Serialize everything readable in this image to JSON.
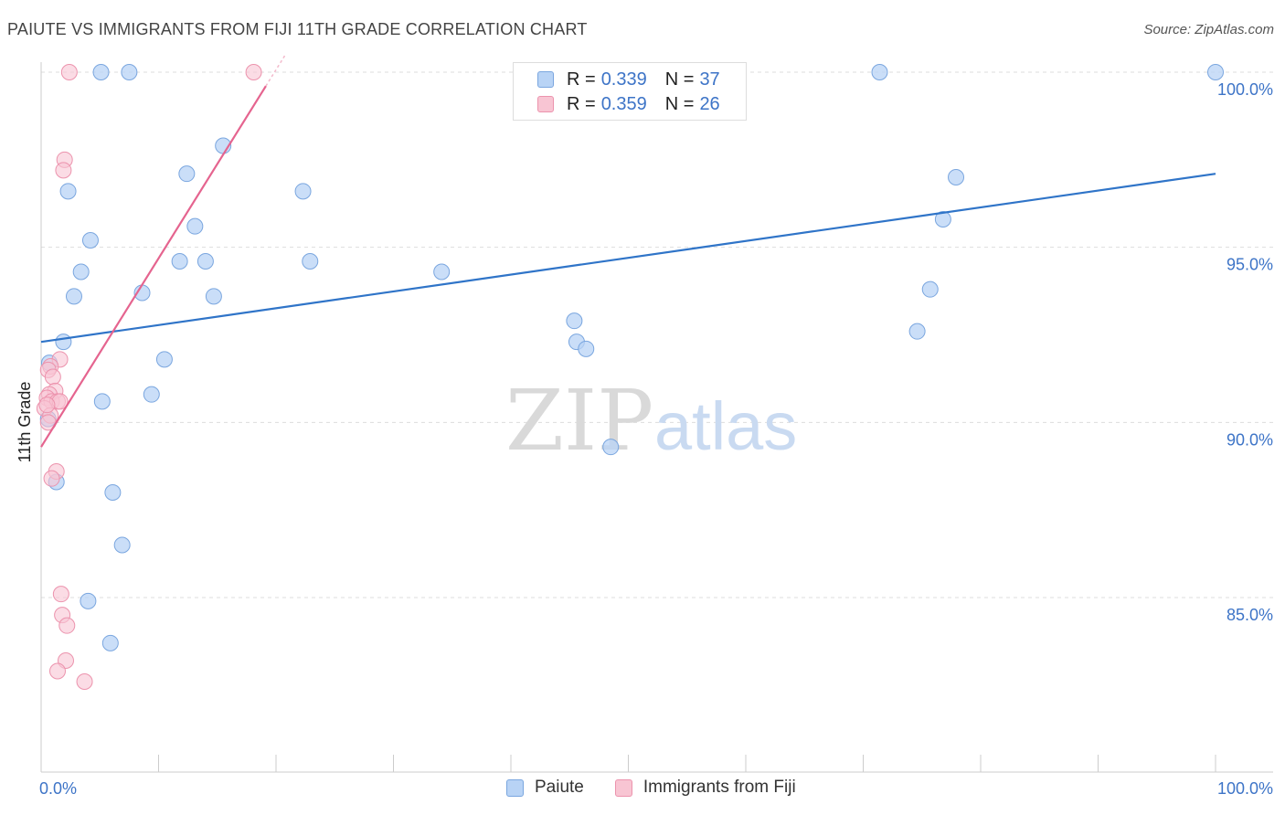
{
  "title": "PAIUTE VS IMMIGRANTS FROM FIJI 11TH GRADE CORRELATION CHART",
  "source": "Source: ZipAtlas.com",
  "watermark": {
    "zip": "ZIP",
    "atlas": "atlas"
  },
  "legend": {
    "rows": [
      {
        "r_label": "R =",
        "r_value": "0.339",
        "n_label": "N =",
        "n_value": "37"
      },
      {
        "r_label": "R =",
        "r_value": "0.359",
        "n_label": "N =",
        "n_value": "26"
      }
    ]
  },
  "colors": {
    "blue_fill": "#b8d3f5",
    "blue_stroke": "#7aa6df",
    "blue_line": "#2f74c8",
    "pink_fill": "#f8c5d3",
    "pink_stroke": "#ec93ad",
    "pink_line": "#e5648f",
    "axis_text": "#3d74c7"
  },
  "chart_data": {
    "type": "scatter",
    "title": "PAIUTE VS IMMIGRANTS FROM FIJI 11TH GRADE CORRELATION CHART",
    "xlabel": "",
    "ylabel": "11th Grade",
    "xlim": [
      0,
      100
    ],
    "ylim": [
      80.2,
      100.5
    ],
    "x_tick_labels": [
      "0.0%",
      "100.0%"
    ],
    "y_ticks": [
      85,
      90,
      95,
      100
    ],
    "y_tick_labels": [
      "85.0%",
      "90.0%",
      "95.0%",
      "100.0%"
    ],
    "grid": "dashed horizontal",
    "series": [
      {
        "name": "Paiute",
        "r": 0.339,
        "n": 37,
        "trend": {
          "x": [
            0,
            100
          ],
          "y": [
            92.3,
            97.1
          ]
        },
        "points": [
          [
            5.1,
            100
          ],
          [
            7.5,
            100
          ],
          [
            71.4,
            100
          ],
          [
            100,
            100
          ],
          [
            15.5,
            97.9
          ],
          [
            12.4,
            97.1
          ],
          [
            2.3,
            96.6
          ],
          [
            22.3,
            96.6
          ],
          [
            77.9,
            97.0
          ],
          [
            76.8,
            95.8
          ],
          [
            13.1,
            95.6
          ],
          [
            4.2,
            95.2
          ],
          [
            11.8,
            94.6
          ],
          [
            14.0,
            94.6
          ],
          [
            22.9,
            94.6
          ],
          [
            3.4,
            94.3
          ],
          [
            34.1,
            94.3
          ],
          [
            2.8,
            93.6
          ],
          [
            8.6,
            93.7
          ],
          [
            14.7,
            93.6
          ],
          [
            75.7,
            93.8
          ],
          [
            74.6,
            92.6
          ],
          [
            45.4,
            92.9
          ],
          [
            45.6,
            92.3
          ],
          [
            46.4,
            92.1
          ],
          [
            1.9,
            92.3
          ],
          [
            10.5,
            91.8
          ],
          [
            0.7,
            91.7
          ],
          [
            9.4,
            90.8
          ],
          [
            5.2,
            90.6
          ],
          [
            0.6,
            90.1
          ],
          [
            48.5,
            89.3
          ],
          [
            1.3,
            88.3
          ],
          [
            6.1,
            88.0
          ],
          [
            6.9,
            86.5
          ],
          [
            4.0,
            84.9
          ],
          [
            5.9,
            83.7
          ]
        ]
      },
      {
        "name": "Immigrants from Fiji",
        "r": 0.359,
        "n": 26,
        "trend": {
          "x": [
            0,
            20.8
          ],
          "y": [
            89.3,
            100.5
          ]
        },
        "points": [
          [
            2.4,
            100
          ],
          [
            18.1,
            100
          ],
          [
            2.0,
            97.5
          ],
          [
            1.9,
            97.2
          ],
          [
            1.6,
            91.8
          ],
          [
            0.8,
            91.6
          ],
          [
            0.6,
            91.5
          ],
          [
            1.0,
            91.3
          ],
          [
            1.2,
            90.9
          ],
          [
            0.7,
            90.8
          ],
          [
            0.5,
            90.7
          ],
          [
            0.9,
            90.6
          ],
          [
            1.4,
            90.6
          ],
          [
            1.6,
            90.6
          ],
          [
            0.3,
            90.4
          ],
          [
            0.8,
            90.2
          ],
          [
            0.6,
            90.0
          ],
          [
            1.3,
            88.6
          ],
          [
            0.9,
            88.4
          ],
          [
            1.7,
            85.1
          ],
          [
            1.8,
            84.5
          ],
          [
            2.2,
            84.2
          ],
          [
            2.1,
            83.2
          ],
          [
            1.4,
            82.9
          ],
          [
            3.7,
            82.6
          ],
          [
            0.5,
            90.5
          ]
        ]
      }
    ]
  }
}
